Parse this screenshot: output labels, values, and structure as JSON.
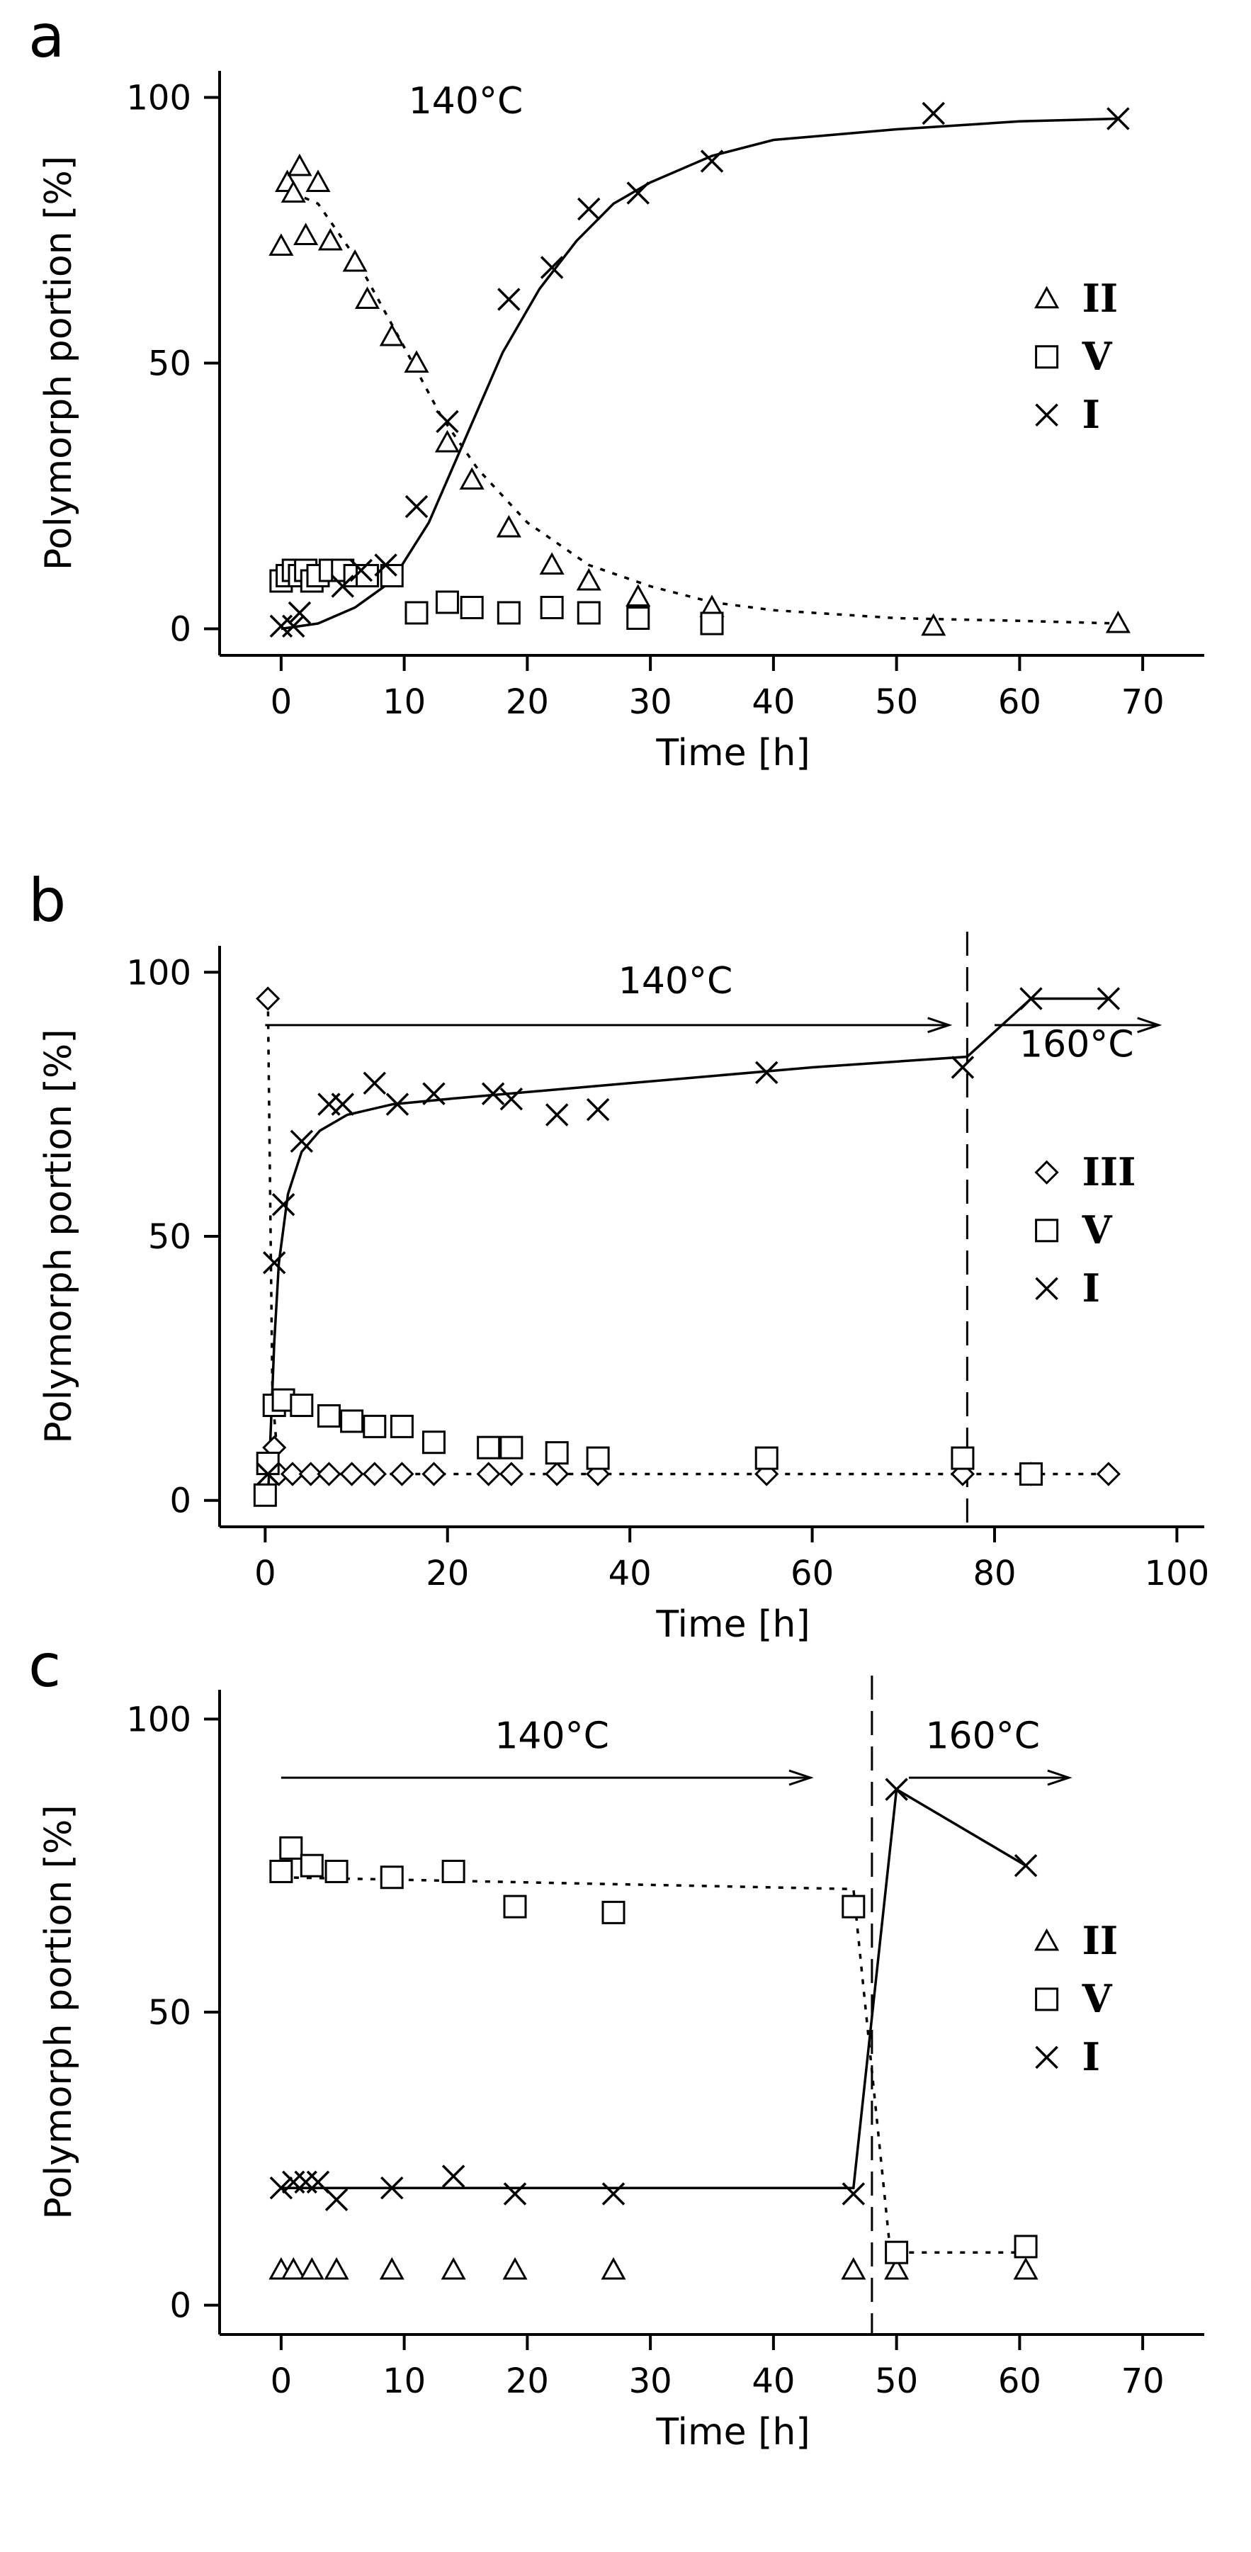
{
  "chart_data": [
    {
      "type": "scatter",
      "panel": "a",
      "title": "",
      "xlabel": "Time [h]",
      "ylabel": "Polymorph portion [%]",
      "xlim": [
        -5,
        75
      ],
      "ylim": [
        -5,
        105
      ],
      "xticks": [
        0,
        10,
        20,
        30,
        40,
        50,
        60,
        70
      ],
      "yticks": [
        0,
        50,
        100
      ],
      "annotations": [
        {
          "text": "140°C",
          "x": 15,
          "y": 97
        }
      ],
      "dividers": [],
      "arrows": [],
      "legend": {
        "location": "right",
        "entries": [
          {
            "label": "II",
            "marker": "triangle"
          },
          {
            "label": "V",
            "marker": "square"
          },
          {
            "label": "I",
            "marker": "cross"
          }
        ]
      },
      "series": [
        {
          "name": "II",
          "marker": "triangle",
          "points": [
            [
              0,
              72
            ],
            [
              0.5,
              84
            ],
            [
              1,
              82
            ],
            [
              1.5,
              87
            ],
            [
              2,
              74
            ],
            [
              3,
              84
            ],
            [
              4,
              73
            ],
            [
              6,
              69
            ],
            [
              7,
              62
            ],
            [
              9,
              55
            ],
            [
              11,
              50
            ],
            [
              13.5,
              35
            ],
            [
              15.5,
              28
            ],
            [
              18.5,
              19
            ],
            [
              22,
              12
            ],
            [
              25,
              9
            ],
            [
              29,
              6
            ],
            [
              35,
              4
            ],
            [
              53,
              0.5
            ],
            [
              68,
              1
            ]
          ]
        },
        {
          "name": "V",
          "marker": "square",
          "points": [
            [
              0,
              9
            ],
            [
              0.5,
              10
            ],
            [
              1,
              11
            ],
            [
              1.5,
              10
            ],
            [
              2,
              11
            ],
            [
              2.5,
              9
            ],
            [
              3,
              10
            ],
            [
              4,
              11
            ],
            [
              5,
              11
            ],
            [
              6,
              10
            ],
            [
              7,
              10
            ],
            [
              9,
              10
            ],
            [
              11,
              3
            ],
            [
              13.5,
              5
            ],
            [
              15.5,
              4
            ],
            [
              18.5,
              3
            ],
            [
              22,
              4
            ],
            [
              25,
              3
            ],
            [
              29,
              2
            ],
            [
              35,
              1
            ]
          ]
        },
        {
          "name": "I",
          "marker": "cross",
          "points": [
            [
              0,
              0.5
            ],
            [
              1,
              0.5
            ],
            [
              1.5,
              3
            ],
            [
              5,
              8
            ],
            [
              6.5,
              11
            ],
            [
              8.5,
              12
            ],
            [
              11,
              23
            ],
            [
              13.5,
              39
            ],
            [
              18.5,
              62
            ],
            [
              22,
              68
            ],
            [
              25,
              79
            ],
            [
              29,
              82
            ],
            [
              35,
              88
            ],
            [
              53,
              97
            ],
            [
              68,
              96
            ]
          ]
        }
      ],
      "fits": [
        {
          "name": "II fit",
          "style": "dotted",
          "points": [
            [
              0,
              83
            ],
            [
              3,
              80
            ],
            [
              6,
              70
            ],
            [
              10,
              53
            ],
            [
              13,
              40
            ],
            [
              16,
              30
            ],
            [
              20,
              20
            ],
            [
              25,
              12
            ],
            [
              30,
              8
            ],
            [
              35,
              5
            ],
            [
              40,
              3.5
            ],
            [
              50,
              2
            ],
            [
              60,
              1.5
            ],
            [
              68,
              1
            ]
          ]
        },
        {
          "name": "I fit",
          "style": "solid",
          "points": [
            [
              0,
              0
            ],
            [
              3,
              1
            ],
            [
              6,
              4
            ],
            [
              9,
              9
            ],
            [
              12,
              20
            ],
            [
              15,
              36
            ],
            [
              18,
              52
            ],
            [
              21,
              64
            ],
            [
              24,
              73
            ],
            [
              27,
              80
            ],
            [
              30,
              84
            ],
            [
              35,
              89
            ],
            [
              40,
              92
            ],
            [
              50,
              94
            ],
            [
              60,
              95.5
            ],
            [
              68,
              96
            ]
          ]
        }
      ]
    },
    {
      "type": "scatter",
      "panel": "b",
      "title": "",
      "xlabel": "Time [h]",
      "ylabel": "Polymorph portion [%]",
      "xlim": [
        -5,
        103
      ],
      "ylim": [
        -5,
        105
      ],
      "xticks": [
        0,
        20,
        40,
        60,
        80,
        100
      ],
      "yticks": [
        0,
        50,
        100
      ],
      "annotations": [
        {
          "text": "140°C",
          "x": 45,
          "y": 96
        },
        {
          "text": "160°C",
          "x": 89,
          "y": 84
        }
      ],
      "dividers": [
        {
          "x": 77
        }
      ],
      "arrows": [
        {
          "from": [
            0,
            90
          ],
          "to": [
            75,
            90
          ]
        },
        {
          "from": [
            80,
            90
          ],
          "to": [
            98,
            90
          ]
        }
      ],
      "legend": {
        "location": "right",
        "entries": [
          {
            "label": "III",
            "marker": "diamond"
          },
          {
            "label": "V",
            "marker": "square"
          },
          {
            "label": "I",
            "marker": "cross"
          }
        ]
      },
      "series": [
        {
          "name": "III",
          "marker": "diamond",
          "points": [
            [
              0.3,
              95
            ],
            [
              1,
              10
            ],
            [
              1.5,
              5
            ],
            [
              3,
              5
            ],
            [
              5,
              5
            ],
            [
              7,
              5
            ],
            [
              9.5,
              5
            ],
            [
              12,
              5
            ],
            [
              15,
              5
            ],
            [
              18.5,
              5
            ],
            [
              24.5,
              5
            ],
            [
              27,
              5
            ],
            [
              32,
              5
            ],
            [
              36.5,
              5
            ],
            [
              55,
              5
            ],
            [
              76.5,
              5
            ],
            [
              84,
              5
            ],
            [
              92.5,
              5
            ]
          ]
        },
        {
          "name": "V",
          "marker": "square",
          "points": [
            [
              0,
              1
            ],
            [
              0.3,
              7
            ],
            [
              1,
              18
            ],
            [
              2,
              19
            ],
            [
              4,
              18
            ],
            [
              7,
              16
            ],
            [
              9.5,
              15
            ],
            [
              12,
              14
            ],
            [
              15,
              14
            ],
            [
              18.5,
              11
            ],
            [
              24.5,
              10
            ],
            [
              27,
              10
            ],
            [
              32,
              9
            ],
            [
              36.5,
              8
            ],
            [
              55,
              8
            ],
            [
              76.5,
              8
            ],
            [
              84,
              5
            ]
          ]
        },
        {
          "name": "I",
          "marker": "cross",
          "points": [
            [
              0.3,
              5
            ],
            [
              1,
              45
            ],
            [
              2,
              56
            ],
            [
              4,
              68
            ],
            [
              7,
              75
            ],
            [
              8.5,
              75
            ],
            [
              12,
              79
            ],
            [
              14.5,
              75
            ],
            [
              18.5,
              77
            ],
            [
              25,
              77
            ],
            [
              27,
              76
            ],
            [
              32,
              73
            ],
            [
              36.5,
              74
            ],
            [
              55,
              81
            ],
            [
              76.5,
              82
            ],
            [
              84,
              95
            ],
            [
              92.5,
              95
            ]
          ]
        }
      ],
      "fits": [
        {
          "name": "III fit",
          "style": "dotted",
          "points": [
            [
              0.3,
              95
            ],
            [
              0.8,
              20
            ],
            [
              1.5,
              5
            ],
            [
              10,
              5
            ],
            [
              40,
              5
            ],
            [
              80,
              5
            ],
            [
              92.5,
              5
            ]
          ]
        },
        {
          "name": "I fit",
          "style": "solid",
          "points": [
            [
              0.3,
              0
            ],
            [
              1,
              30
            ],
            [
              1.5,
              45
            ],
            [
              2.5,
              58
            ],
            [
              4,
              66
            ],
            [
              6,
              70
            ],
            [
              9,
              73
            ],
            [
              14,
              75
            ],
            [
              20,
              76
            ],
            [
              40,
              79
            ],
            [
              60,
              82
            ],
            [
              77,
              84
            ],
            [
              84,
              95
            ],
            [
              92.5,
              95
            ]
          ]
        }
      ]
    },
    {
      "type": "scatter",
      "panel": "c",
      "title": "",
      "xlabel": "Time [h]",
      "ylabel": "Polymorph portion [%]",
      "xlim": [
        -5,
        75
      ],
      "ylim": [
        -5,
        105
      ],
      "xticks": [
        0,
        10,
        20,
        30,
        40,
        50,
        60,
        70
      ],
      "yticks": [
        0,
        50,
        100
      ],
      "annotations": [
        {
          "text": "140°C",
          "x": 22,
          "y": 95
        },
        {
          "text": "160°C",
          "x": 57,
          "y": 95
        }
      ],
      "dividers": [
        {
          "x": 48
        }
      ],
      "arrows": [
        {
          "from": [
            0,
            90
          ],
          "to": [
            43,
            90
          ]
        },
        {
          "from": [
            51,
            90
          ],
          "to": [
            64,
            90
          ]
        }
      ],
      "legend": {
        "location": "right",
        "entries": [
          {
            "label": "II",
            "marker": "triangle"
          },
          {
            "label": "V",
            "marker": "square"
          },
          {
            "label": "I",
            "marker": "cross"
          }
        ]
      },
      "series": [
        {
          "name": "II",
          "marker": "triangle",
          "points": [
            [
              0,
              6
            ],
            [
              1,
              6
            ],
            [
              2.5,
              6
            ],
            [
              4.5,
              6
            ],
            [
              9,
              6
            ],
            [
              14,
              6
            ],
            [
              19,
              6
            ],
            [
              27,
              6
            ],
            [
              46.5,
              6
            ],
            [
              50,
              6
            ],
            [
              60.5,
              6
            ]
          ]
        },
        {
          "name": "V",
          "marker": "square",
          "points": [
            [
              0,
              74
            ],
            [
              0.8,
              78
            ],
            [
              2.5,
              75
            ],
            [
              4.5,
              74
            ],
            [
              9,
              73
            ],
            [
              14,
              74
            ],
            [
              19,
              68
            ],
            [
              27,
              67
            ],
            [
              46.5,
              68
            ],
            [
              50,
              9
            ],
            [
              60.5,
              10
            ]
          ]
        },
        {
          "name": "I",
          "marker": "cross",
          "points": [
            [
              0,
              20
            ],
            [
              1,
              21
            ],
            [
              2,
              21
            ],
            [
              3,
              21
            ],
            [
              4.5,
              18
            ],
            [
              9,
              20
            ],
            [
              14,
              22
            ],
            [
              19,
              19
            ],
            [
              27,
              19
            ],
            [
              46.5,
              19
            ],
            [
              50,
              88
            ],
            [
              60.5,
              75
            ]
          ]
        }
      ],
      "fits": [
        {
          "name": "V fit",
          "style": "dotted",
          "points": [
            [
              0,
              73
            ],
            [
              46.5,
              71
            ],
            [
              49.5,
              9
            ],
            [
              60.5,
              9
            ]
          ]
        },
        {
          "name": "I fit",
          "style": "solid",
          "points": [
            [
              0,
              20
            ],
            [
              46.5,
              20
            ],
            [
              50,
              88
            ],
            [
              60.5,
              75
            ]
          ]
        }
      ]
    }
  ]
}
